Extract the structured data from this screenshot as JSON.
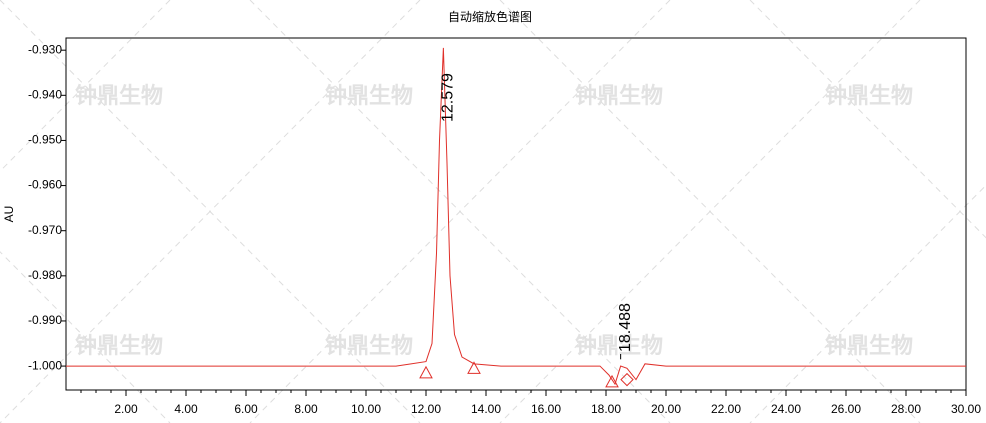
{
  "chart_data": {
    "type": "line",
    "title": "自动缩放色谱图",
    "y_label": "AU",
    "watermark": "钟鼎生物",
    "x": [
      0,
      8,
      11,
      11.5,
      12.0,
      12.2,
      12.35,
      12.45,
      12.579,
      12.7,
      12.8,
      12.95,
      13.2,
      13.6,
      14.5,
      16,
      17.8,
      18.1,
      18.3,
      18.488,
      18.7,
      19.0,
      19.3,
      20,
      30
    ],
    "series": [
      {
        "color": "#e0302a",
        "values": [
          -1.0,
          -1.0,
          -1.0,
          -0.9995,
          -0.999,
          -0.995,
          -0.975,
          -0.95,
          -0.9295,
          -0.955,
          -0.98,
          -0.993,
          -0.998,
          -0.9995,
          -1.0,
          -1.0,
          -1.0,
          -1.002,
          -1.004,
          -1.0,
          -1.0005,
          -1.003,
          -0.9995,
          -1.0,
          -1.0
        ]
      }
    ],
    "peak_labels": [
      12.579,
      18.488
    ],
    "markers": [
      {
        "x": 12.0,
        "y": -1.0015,
        "shape": "triangle"
      },
      {
        "x": 13.6,
        "y": -1.0005,
        "shape": "triangle"
      },
      {
        "x": 18.2,
        "y": -1.0035,
        "shape": "triangle"
      },
      {
        "x": 18.7,
        "y": -1.003,
        "shape": "diamond"
      }
    ],
    "xlim": [
      0,
      30
    ],
    "ylim": [
      -1.0053,
      -0.9273
    ],
    "xticks": [
      {
        "value": 2,
        "label": "2.00"
      },
      {
        "value": 4,
        "label": "4.00"
      },
      {
        "value": 6,
        "label": "6.00"
      },
      {
        "value": 8,
        "label": "8.00"
      },
      {
        "value": 10,
        "label": "10.00"
      },
      {
        "value": 12,
        "label": "12.00"
      },
      {
        "value": 14,
        "label": "14.00"
      },
      {
        "value": 16,
        "label": "16.00"
      },
      {
        "value": 18,
        "label": "18.00"
      },
      {
        "value": 20,
        "label": "20.00"
      },
      {
        "value": 22,
        "label": "22.00"
      },
      {
        "value": 24,
        "label": "24.00"
      },
      {
        "value": 26,
        "label": "26.00"
      },
      {
        "value": 28,
        "label": "28.00"
      },
      {
        "value": 30,
        "label": "30.00"
      }
    ],
    "yticks": [
      {
        "value": -0.93,
        "label": "-0.930"
      },
      {
        "value": -0.94,
        "label": "-0.940"
      },
      {
        "value": -0.95,
        "label": "-0.950"
      },
      {
        "value": -0.96,
        "label": "-0.960"
      },
      {
        "value": -0.97,
        "label": "-0.970"
      },
      {
        "value": -0.98,
        "label": "-0.980"
      },
      {
        "value": -0.99,
        "label": "-0.990"
      },
      {
        "value": -1.0,
        "label": "-1.000"
      }
    ]
  }
}
